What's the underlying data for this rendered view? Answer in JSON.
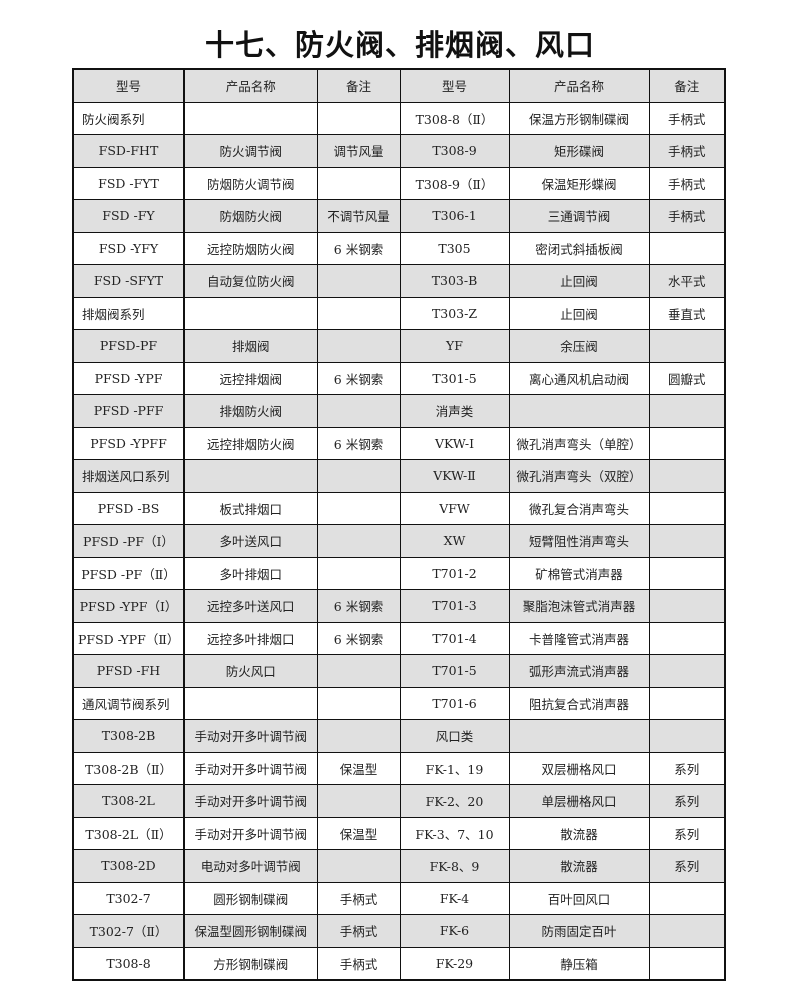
{
  "title": "十七、防火阀、排烟阀、风口",
  "headers": [
    "型号",
    "产品名称",
    "备注",
    "型号",
    "产品名称",
    "备注"
  ],
  "rows": [
    [
      "防火阀系列",
      "",
      "",
      "T308-8（Ⅱ）",
      "保温方形钢制碟阀",
      "手柄式"
    ],
    [
      "FSD-FHT",
      "防火调节阀",
      "调节风量",
      "T308-9",
      "矩形碟阀",
      "手柄式"
    ],
    [
      "FSD -FYT",
      "防烟防火调节阀",
      "",
      "T308-9（Ⅱ）",
      "保温矩形蝶阀",
      "手柄式"
    ],
    [
      "FSD -FY",
      "防烟防火阀",
      "不调节风量",
      "T306-1",
      "三通调节阀",
      "手柄式"
    ],
    [
      "FSD -YFY",
      "远控防烟防火阀",
      "6 米钢索",
      "T305",
      "密闭式斜插板阀",
      ""
    ],
    [
      "FSD -SFYT",
      "自动复位防火阀",
      "",
      "T303-B",
      "止回阀",
      "水平式"
    ],
    [
      "排烟阀系列",
      "",
      "",
      "T303-Z",
      "止回阀",
      "垂直式"
    ],
    [
      "PFSD-PF",
      "排烟阀",
      "",
      "YF",
      "余压阀",
      ""
    ],
    [
      "PFSD -YPF",
      "远控排烟阀",
      "6 米钢索",
      "T301-5",
      "离心通风机启动阀",
      "圆瓣式"
    ],
    [
      "PFSD -PFF",
      "排烟防火阀",
      "",
      "消声类",
      "",
      ""
    ],
    [
      "PFSD -YPFF",
      "远控排烟防火阀",
      "6 米钢索",
      "VKW-Ⅰ",
      "微孔消声弯头（单腔）",
      ""
    ],
    [
      "排烟送风口系列",
      "",
      "",
      "VKW-Ⅱ",
      "微孔消声弯头（双腔）",
      ""
    ],
    [
      "PFSD -BS",
      "板式排烟口",
      "",
      "VFW",
      "微孔复合消声弯头",
      ""
    ],
    [
      "PFSD -PF（Ⅰ）",
      "多叶送风口",
      "",
      "XW",
      "短臂阻性消声弯头",
      ""
    ],
    [
      "PFSD -PF（Ⅱ）",
      "多叶排烟口",
      "",
      "T701-2",
      "矿棉管式消声器",
      ""
    ],
    [
      "PFSD -YPF（Ⅰ）",
      "远控多叶送风口",
      "6 米钢索",
      "T701-3",
      "聚脂泡沫管式消声器",
      ""
    ],
    [
      "PFSD -YPF（Ⅱ）",
      "远控多叶排烟口",
      "6 米钢索",
      "T701-4",
      "卡普隆管式消声器",
      ""
    ],
    [
      "PFSD -FH",
      "防火风口",
      "",
      "T701-5",
      "弧形声流式消声器",
      ""
    ],
    [
      "通风调节阀系列",
      "",
      "",
      "T701-6",
      "阻抗复合式消声器",
      ""
    ],
    [
      "T308-2B",
      "手动对开多叶调节阀",
      "",
      "风口类",
      "",
      ""
    ],
    [
      "T308-2B（Ⅱ）",
      "手动对开多叶调节阀",
      "保温型",
      "FK-1、19",
      "双层栅格风口",
      "系列"
    ],
    [
      "T308-2L",
      "手动对开多叶调节阀",
      "",
      "FK-2、20",
      "单层栅格风口",
      "系列"
    ],
    [
      "T308-2L（Ⅱ）",
      "手动对开多叶调节阀",
      "保温型",
      "FK-3、7、10",
      "散流器",
      "系列"
    ],
    [
      "T308-2D",
      "电动对多叶调节阀",
      "",
      "FK-8、9",
      "散流器",
      "系列"
    ],
    [
      "T302-7",
      "圆形钢制碟阀",
      "手柄式",
      "FK-4",
      "百叶回风口",
      ""
    ],
    [
      "T302-7（Ⅱ）",
      "保温型圆形钢制碟阀",
      "手柄式",
      "FK-6",
      "防雨固定百叶",
      ""
    ],
    [
      "T308-8",
      "方形钢制碟阀",
      "手柄式",
      "FK-29",
      "静压箱",
      ""
    ]
  ]
}
